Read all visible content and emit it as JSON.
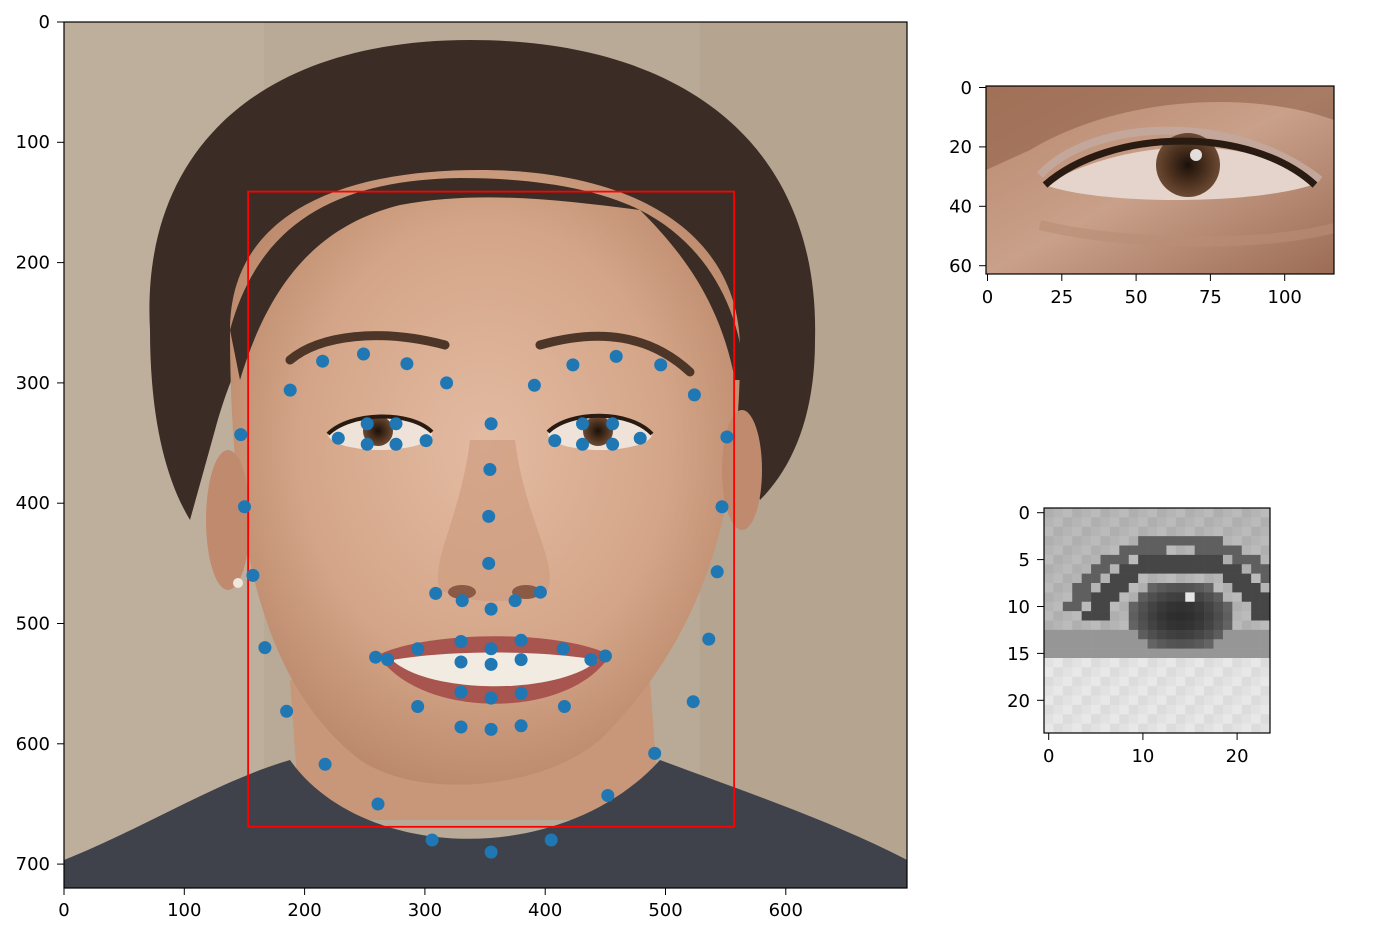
{
  "colors": {
    "point": "#1f77b4",
    "bbox": "#ff0000",
    "axis": "#000000",
    "bg_skin": "#c9a38a",
    "bg_wall": "#b7a996",
    "hair": "#3b2d25",
    "eye_dark": "#3b2618"
  },
  "chart_data": [
    {
      "type": "scatter",
      "image": "face-photo",
      "xlim": [
        0,
        700
      ],
      "ylim": [
        720,
        0
      ],
      "xticks": [
        0,
        100,
        200,
        300,
        400,
        500,
        600
      ],
      "yticks": [
        0,
        100,
        200,
        300,
        400,
        500,
        600,
        700
      ],
      "xtick_labels": [
        "0",
        "100",
        "200",
        "300",
        "400",
        "500",
        "600"
      ],
      "ytick_labels": [
        "0",
        "100",
        "200",
        "300",
        "400",
        "500",
        "600",
        "700"
      ],
      "bbox": {
        "x0": 153,
        "y0": 141,
        "x1": 557,
        "y1": 669
      },
      "points": [
        [
          147,
          343
        ],
        [
          150,
          403
        ],
        [
          157,
          460
        ],
        [
          167,
          520
        ],
        [
          185,
          573
        ],
        [
          217,
          617
        ],
        [
          261,
          650
        ],
        [
          306,
          680
        ],
        [
          355,
          690
        ],
        [
          405,
          680
        ],
        [
          452,
          643
        ],
        [
          491,
          608
        ],
        [
          523,
          565
        ],
        [
          536,
          513
        ],
        [
          543,
          457
        ],
        [
          547,
          403
        ],
        [
          551,
          345
        ],
        [
          188,
          306
        ],
        [
          215,
          282
        ],
        [
          249,
          276
        ],
        [
          285,
          284
        ],
        [
          318,
          300
        ],
        [
          391,
          302
        ],
        [
          423,
          285
        ],
        [
          459,
          278
        ],
        [
          496,
          285
        ],
        [
          524,
          310
        ],
        [
          355,
          334
        ],
        [
          354,
          372
        ],
        [
          353,
          411
        ],
        [
          353,
          450
        ],
        [
          309,
          475
        ],
        [
          331,
          481
        ],
        [
          355,
          488
        ],
        [
          375,
          481
        ],
        [
          396,
          474
        ],
        [
          228,
          346
        ],
        [
          252,
          334
        ],
        [
          276,
          334
        ],
        [
          301,
          348
        ],
        [
          276,
          351
        ],
        [
          252,
          351
        ],
        [
          408,
          348
        ],
        [
          431,
          334
        ],
        [
          456,
          334
        ],
        [
          479,
          346
        ],
        [
          456,
          351
        ],
        [
          431,
          351
        ],
        [
          259,
          528
        ],
        [
          294,
          521
        ],
        [
          330,
          515
        ],
        [
          355,
          521
        ],
        [
          380,
          514
        ],
        [
          415,
          521
        ],
        [
          450,
          527
        ],
        [
          416,
          569
        ],
        [
          380,
          558
        ],
        [
          355,
          562
        ],
        [
          330,
          557
        ],
        [
          294,
          569
        ],
        [
          269,
          530
        ],
        [
          330,
          532
        ],
        [
          355,
          534
        ],
        [
          380,
          530
        ],
        [
          438,
          530
        ],
        [
          380,
          585
        ],
        [
          355,
          588
        ],
        [
          330,
          586
        ]
      ]
    },
    {
      "type": "image",
      "image": "eye-crop-color",
      "xlim": [
        0,
        117
      ],
      "ylim": [
        64,
        0
      ],
      "xticks": [
        0,
        25,
        50,
        75,
        100
      ],
      "yticks": [
        0,
        20,
        40,
        60
      ],
      "xtick_labels": [
        "0",
        "25",
        "50",
        "75",
        "100"
      ],
      "ytick_labels": [
        "0",
        "20",
        "40",
        "60"
      ]
    },
    {
      "type": "heatmap",
      "image": "eye-crop-grayscale",
      "xlim": [
        0,
        24
      ],
      "ylim": [
        24,
        0
      ],
      "xticks": [
        0,
        10,
        20
      ],
      "yticks": [
        0,
        5,
        10,
        15,
        20
      ],
      "xtick_labels": [
        "0",
        "10",
        "20"
      ],
      "ytick_labels": [
        "0",
        "5",
        "10",
        "15",
        "20"
      ]
    }
  ]
}
